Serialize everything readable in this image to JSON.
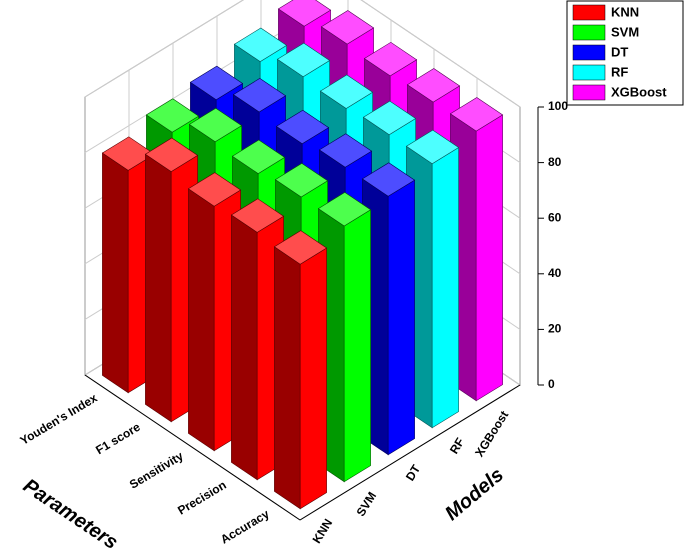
{
  "chart_data": {
    "type": "bar3d",
    "xlabel": "Parameters",
    "ylabel": "Models",
    "categories": [
      "Accuracy",
      "Precision",
      "Sensitivity",
      "F1 score",
      "Youden's Index"
    ],
    "series": [
      {
        "name": "KNN",
        "color": "#ff0000",
        "values": [
          88,
          89,
          88,
          90,
          80
        ]
      },
      {
        "name": "SVM",
        "color": "#00ff00",
        "values": [
          92,
          92,
          90,
          91,
          84
        ]
      },
      {
        "name": "DT",
        "color": "#0000ff",
        "values": [
          93,
          93,
          91,
          92,
          86
        ]
      },
      {
        "name": "RF",
        "color": "#00ffff",
        "values": [
          95,
          95,
          94,
          95,
          90
        ]
      },
      {
        "name": "XGBoost",
        "color": "#ff00ff",
        "values": [
          97,
          97,
          96,
          97,
          93
        ]
      }
    ],
    "zlim": [
      0,
      100
    ],
    "zticks": [
      0,
      20,
      40,
      60,
      80,
      100
    ],
    "grid": true,
    "legend": "upper right"
  }
}
